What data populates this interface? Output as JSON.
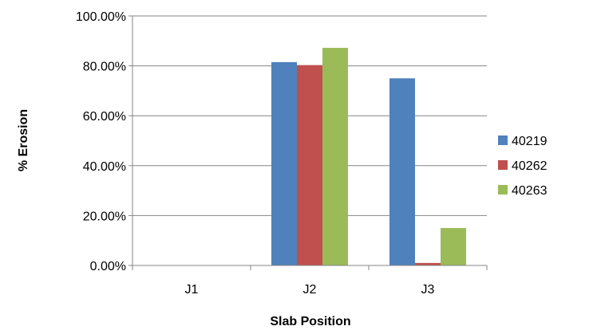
{
  "chart_data": {
    "type": "bar",
    "categories": [
      "J1",
      "J2",
      "J3"
    ],
    "series": [
      {
        "name": "40219",
        "values": [
          0,
          81.5,
          75.0
        ],
        "color": "#4F81BD"
      },
      {
        "name": "40262",
        "values": [
          0,
          80.3,
          1.0
        ],
        "color": "#C0504D"
      },
      {
        "name": "40263",
        "values": [
          0,
          87.2,
          15.0
        ],
        "color": "#9BBB59"
      }
    ],
    "xlabel": "Slab Position",
    "ylabel": "% Erosion",
    "ylim": [
      0,
      100
    ],
    "yticks": [
      "0.00%",
      "20.00%",
      "40.00%",
      "60.00%",
      "80.00%",
      "100.00%"
    ],
    "grid": true,
    "legend_position": "right"
  }
}
